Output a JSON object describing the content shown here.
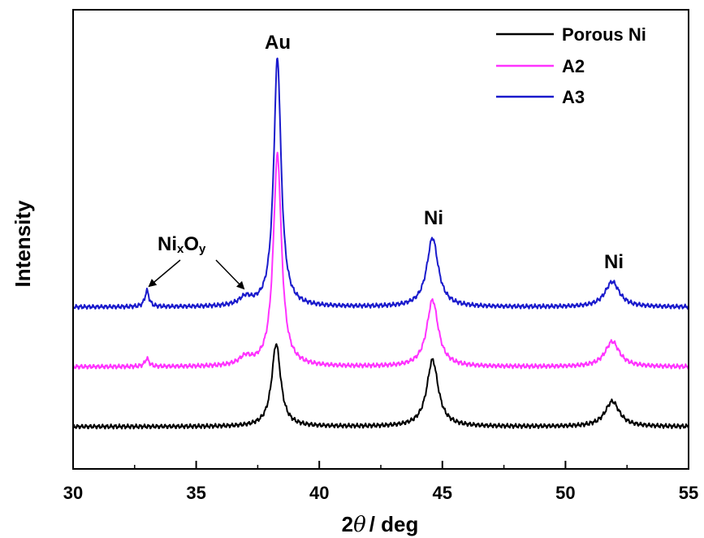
{
  "chart_data": {
    "type": "line",
    "xlabel_prefix": "2",
    "xlabel_symbol": "θ",
    "xlabel_suffix": "/ deg",
    "ylabel": "Intensity",
    "xlim": [
      30,
      55
    ],
    "xticks": [
      "30",
      "35",
      "40",
      "45",
      "50",
      "55"
    ],
    "y_ticks_shown": false,
    "legend_position": "top-right",
    "colors": {
      "Porous Ni": "#000000",
      "A2": "#ff33ff",
      "A3": "#1a1acc"
    },
    "series": [
      {
        "name": "Porous Ni",
        "color": "#000000",
        "baseline": 0.0,
        "peaks": [
          {
            "x": 38.25,
            "height": 0.36,
            "width": 0.22
          },
          {
            "x": 44.6,
            "height": 0.29,
            "width": 0.28
          },
          {
            "x": 51.9,
            "height": 0.11,
            "width": 0.35
          }
        ]
      },
      {
        "name": "A2",
        "color": "#ff33ff",
        "baseline": 0.26,
        "peaks": [
          {
            "x": 33.0,
            "height": 0.035,
            "width": 0.1
          },
          {
            "x": 37.0,
            "height": 0.035,
            "width": 0.3
          },
          {
            "x": 38.3,
            "height": 0.92,
            "width": 0.2
          },
          {
            "x": 44.6,
            "height": 0.29,
            "width": 0.28
          },
          {
            "x": 51.9,
            "height": 0.11,
            "width": 0.35
          }
        ]
      },
      {
        "name": "A3",
        "color": "#1a1acc",
        "baseline": 0.52,
        "peaks": [
          {
            "x": 33.0,
            "height": 0.07,
            "width": 0.1
          },
          {
            "x": 37.0,
            "height": 0.035,
            "width": 0.3
          },
          {
            "x": 38.3,
            "height": 1.08,
            "width": 0.18
          },
          {
            "x": 44.6,
            "height": 0.3,
            "width": 0.28
          },
          {
            "x": 51.9,
            "height": 0.11,
            "width": 0.35
          }
        ]
      }
    ],
    "annotations": [
      {
        "main": "Au",
        "sub": "",
        "x": 38.3
      },
      {
        "main": "Ni",
        "sub": "",
        "x": 44.6
      },
      {
        "main": "Ni",
        "sub": "",
        "x": 51.9
      },
      {
        "main": "Ni",
        "sub": "x",
        "main2": "O",
        "sub2": "y",
        "x": 34.6,
        "arrows_to_x": [
          33.0,
          37.0
        ]
      }
    ]
  }
}
